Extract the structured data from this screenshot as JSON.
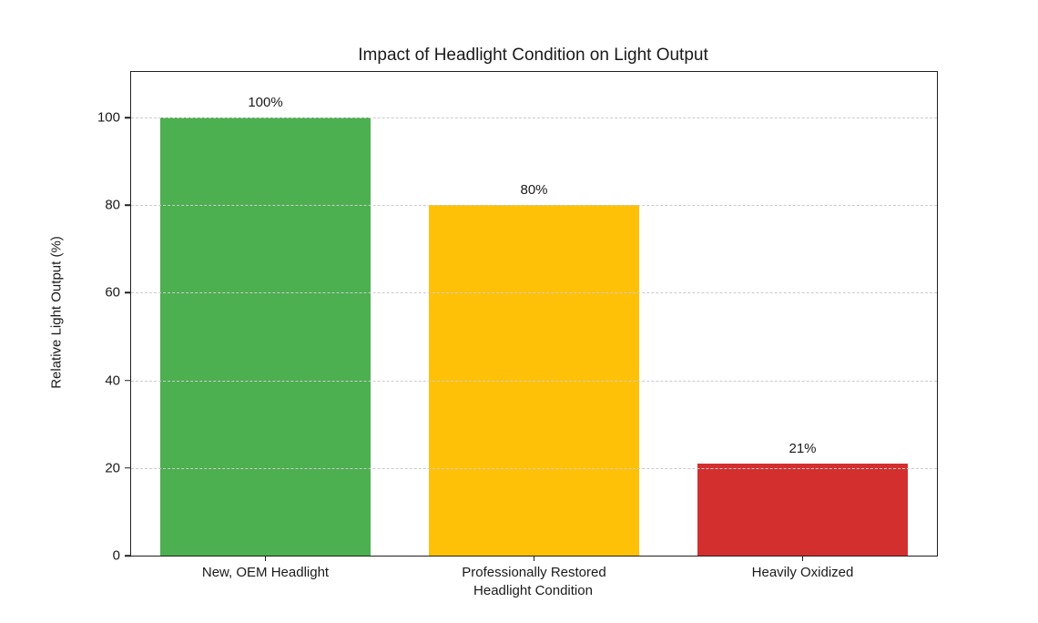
{
  "chart_data": {
    "type": "bar",
    "title": "Impact of Headlight Condition on Light Output",
    "xlabel": "Headlight Condition",
    "ylabel": "Relative Light Output (%)",
    "categories": [
      "New, OEM Headlight",
      "Professionally Restored",
      "Heavily Oxidized"
    ],
    "values": [
      100,
      80,
      21
    ],
    "value_labels": [
      "100%",
      "80%",
      "21%"
    ],
    "bar_colors": [
      "#4caf50",
      "#ffc107",
      "#d32f2f"
    ],
    "yticks": [
      0,
      20,
      40,
      60,
      80,
      100
    ],
    "ylim": [
      0,
      110.4
    ],
    "bar_width_fraction": 0.78,
    "grid": "horizontal-dashed",
    "grid_color": "#cbcbcb",
    "legend": "none"
  }
}
